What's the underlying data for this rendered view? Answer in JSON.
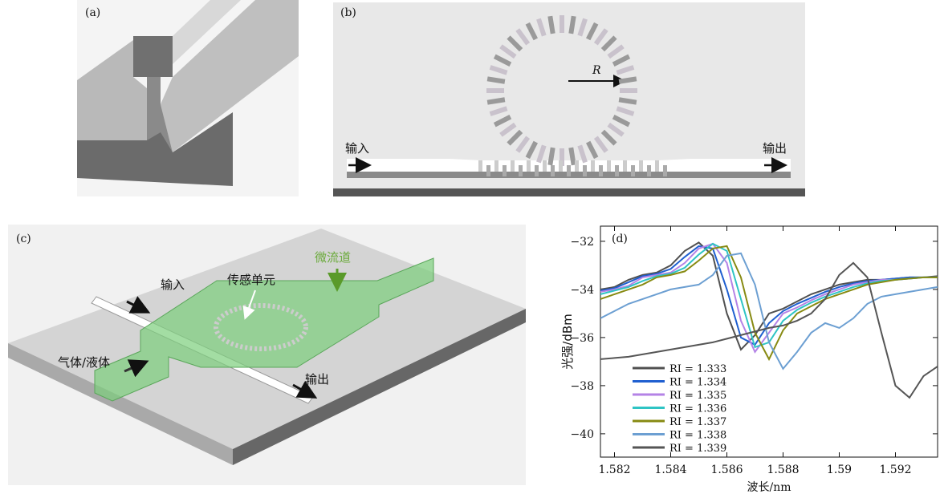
{
  "panels": {
    "a": {
      "label": "(a)"
    },
    "b": {
      "label": "(b)",
      "radius": "R",
      "input": "输入",
      "output": "输出"
    },
    "c": {
      "label": "(c)",
      "input": "输入",
      "sensor": "传感单元",
      "channel": "微流道",
      "fluid": "气体/液体",
      "output": "输出"
    }
  },
  "chart_data": {
    "type": "line",
    "panel_label": "(d)",
    "x_label": "波长/nm",
    "y_label": "光强/dBm",
    "xlim": [
      1.5815,
      1.5935
    ],
    "ylim": [
      -40.97,
      -31.37
    ],
    "xticks": [
      1.582,
      1.584,
      1.586,
      1.588,
      1.59,
      1.592
    ],
    "yticks": [
      {
        "value": -32,
        "label": "−32"
      },
      {
        "value": -34,
        "label": "−34"
      },
      {
        "value": -36,
        "label": "−36"
      },
      {
        "value": -38,
        "label": "−38"
      },
      {
        "value": -40,
        "label": "−40"
      }
    ],
    "legend": "lower left",
    "x": [
      1.5815,
      1.582,
      1.5825,
      1.583,
      1.5835,
      1.584,
      1.5845,
      1.585,
      1.5855,
      1.586,
      1.5865,
      1.587,
      1.5875,
      1.588,
      1.5885,
      1.589,
      1.5895,
      1.59,
      1.5905,
      1.591,
      1.5915,
      1.592,
      1.5925,
      1.593,
      1.5935
    ],
    "series": [
      {
        "name": "RI = 1.333",
        "color": "#505050",
        "values": [
          -34.0,
          -33.9,
          -33.6,
          -33.4,
          -33.3,
          -33.0,
          -32.4,
          -32.05,
          -32.6,
          -35.0,
          -36.5,
          -35.9,
          -35.0,
          -34.8,
          -34.5,
          -34.2,
          -34.0,
          -33.8,
          -33.7,
          -33.6,
          -33.6,
          -33.55,
          -33.5,
          -33.5,
          -33.45
        ]
      },
      {
        "name": "RI = 1.334",
        "color": "#1f5fd0",
        "values": [
          -34.05,
          -33.95,
          -33.7,
          -33.45,
          -33.35,
          -33.15,
          -32.65,
          -32.2,
          -32.3,
          -34.0,
          -36.0,
          -36.3,
          -35.4,
          -34.9,
          -34.6,
          -34.35,
          -34.1,
          -33.9,
          -33.75,
          -33.65,
          -33.6,
          -33.55,
          -33.5,
          -33.5,
          -33.5
        ]
      },
      {
        "name": "RI = 1.335",
        "color": "#b483e6",
        "values": [
          -34.1,
          -34.0,
          -33.85,
          -33.5,
          -33.4,
          -33.3,
          -32.9,
          -32.3,
          -32.1,
          -32.9,
          -35.3,
          -36.6,
          -35.8,
          -35.0,
          -34.75,
          -34.45,
          -34.2,
          -34.0,
          -33.8,
          -33.7,
          -33.6,
          -33.6,
          -33.55,
          -33.5,
          -33.5
        ]
      },
      {
        "name": "RI = 1.336",
        "color": "#2ec4c4",
        "values": [
          -34.2,
          -34.05,
          -33.9,
          -33.65,
          -33.45,
          -33.35,
          -33.1,
          -32.55,
          -32.1,
          -32.4,
          -34.4,
          -36.4,
          -36.2,
          -35.3,
          -34.85,
          -34.55,
          -34.3,
          -34.1,
          -33.9,
          -33.75,
          -33.65,
          -33.6,
          -33.55,
          -33.5,
          -33.5
        ]
      },
      {
        "name": "RI = 1.337",
        "color": "#878a12",
        "values": [
          -34.4,
          -34.2,
          -34.0,
          -33.8,
          -33.5,
          -33.4,
          -33.25,
          -32.8,
          -32.3,
          -32.2,
          -33.5,
          -35.8,
          -36.9,
          -35.7,
          -35.0,
          -34.7,
          -34.4,
          -34.2,
          -34.0,
          -33.8,
          -33.7,
          -33.6,
          -33.55,
          -33.5,
          -33.5
        ]
      },
      {
        "name": "RI = 1.338",
        "color": "#6c9fd2",
        "values": [
          -35.2,
          -34.9,
          -34.6,
          -34.4,
          -34.2,
          -34.0,
          -33.9,
          -33.8,
          -33.4,
          -32.6,
          -32.5,
          -33.8,
          -36.2,
          -37.3,
          -36.6,
          -35.8,
          -35.4,
          -35.6,
          -35.2,
          -34.6,
          -34.3,
          -34.2,
          -34.1,
          -34.0,
          -33.9
        ]
      },
      {
        "name": "RI = 1.339",
        "color": "#555555",
        "values": [
          -36.9,
          -36.85,
          -36.8,
          -36.7,
          -36.6,
          -36.5,
          -36.4,
          -36.3,
          -36.2,
          -36.05,
          -35.9,
          -35.75,
          -35.6,
          -35.5,
          -35.3,
          -35.0,
          -34.4,
          -33.4,
          -32.9,
          -33.5,
          -35.8,
          -38.0,
          -38.5,
          -37.6,
          -37.2
        ]
      }
    ]
  }
}
